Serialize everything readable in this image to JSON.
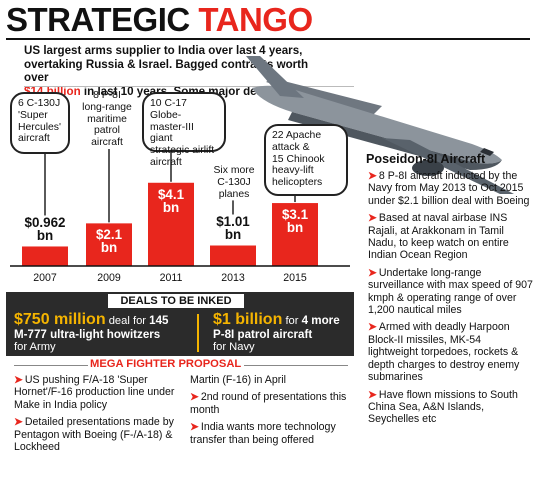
{
  "header": {
    "title_part1": "STRATEGIC",
    "title_part2": "TANGO",
    "intro_line1": "US largest arms supplier to India over last 4 years,",
    "intro_line2": "overtaking Russia & Israel. Bagged contracts worth over",
    "intro_amount": "$14 billion",
    "intro_line3_rest": " in last 10 years. Some major deals inked:"
  },
  "chart_data": {
    "type": "bar",
    "categories": [
      "2007",
      "2009",
      "2011",
      "2013",
      "2015"
    ],
    "values": [
      0.962,
      2.1,
      4.1,
      1.01,
      3.1
    ],
    "value_labels_line1": [
      "$0.962",
      "$2.1",
      "$4.1",
      "$1.01",
      "$3.1"
    ],
    "value_labels_line2": [
      "bn",
      "bn",
      "bn",
      "bn",
      "bn"
    ],
    "annotations": [
      "6 C-130J 'Super Hercules' aircraft",
      "8 P-8I long-range maritime patrol aircraft",
      "10 C-17 Globe-master-III giant strategic airlift aircraft",
      "Six more C-130J planes",
      "22 Apache attack & 15 Chinook heavy-lift helicopters"
    ],
    "annotation_lines": [
      [
        "6 C-130J",
        "'Super",
        "Hercules'",
        "aircraft"
      ],
      [
        "8 P-8I",
        "long-range",
        "maritime",
        "patrol",
        "aircraft"
      ],
      [
        "10 C-17 Globe-",
        "master-III giant",
        "strategic airlift",
        "aircraft"
      ],
      [
        "Six more",
        "C-130J",
        "planes"
      ],
      [
        "22 Apache",
        "attack &",
        "15 Chinook",
        "heavy-lift",
        "helicopters"
      ]
    ],
    "xlabel": "",
    "ylabel": "",
    "bar_color": "#e8261d"
  },
  "poseidon": {
    "title": "Poseidon-8I Aircraft",
    "items": [
      "8 P-8I aircraft inducted by the Navy from May 2013 to Oct 2015 under $2.1 billion deal with Boeing",
      "Based at naval airbase INS Rajali, at Arakkonam in Tamil Nadu, to keep watch on entire Indian Ocean Region",
      "Undertake long-range surveillance with max speed of 907 kmph & operating range of over 1,200 nautical miles",
      "Armed with deadly Harpoon Block-II missiles, MK-54 lightweight torpedoes, rockets & depth charges to destroy enemy submarines",
      "Have flown missions to South China Sea, A&N Islands, Seychelles etc"
    ]
  },
  "deals": {
    "heading": "DEALS TO BE INKED",
    "deal1_amount": "$750 million",
    "deal1_text1": " deal for ",
    "deal1_bold1": "145",
    "deal1_bold2": "M-777 ultra-light howitzers",
    "deal1_text2": "for Army",
    "deal2_amount": "$1 billion",
    "deal2_text1": " for ",
    "deal2_bold1": "4 more",
    "deal2_bold2": "P-8I patrol aircraft",
    "deal2_text2": "for Navy"
  },
  "mega": {
    "title": "MEGA FIGHTER PROPOSAL",
    "left_items": [
      "US pushing F/A-18 'Super Hornet'/F-16 production line under Make in India policy",
      "Detailed presentations made by Pentagon with Boeing (F-/A-18) & Lockheed"
    ],
    "right_continuation": "Martin (F-16) in April",
    "right_items": [
      "2nd round of presentations this month",
      "India wants more technology transfer than being offered"
    ]
  },
  "colors": {
    "accent_red": "#e8261d",
    "deal_amount_yellow": "#f5b400",
    "band_dark": "#2b2b2b"
  },
  "bullet_glyph": "➤"
}
